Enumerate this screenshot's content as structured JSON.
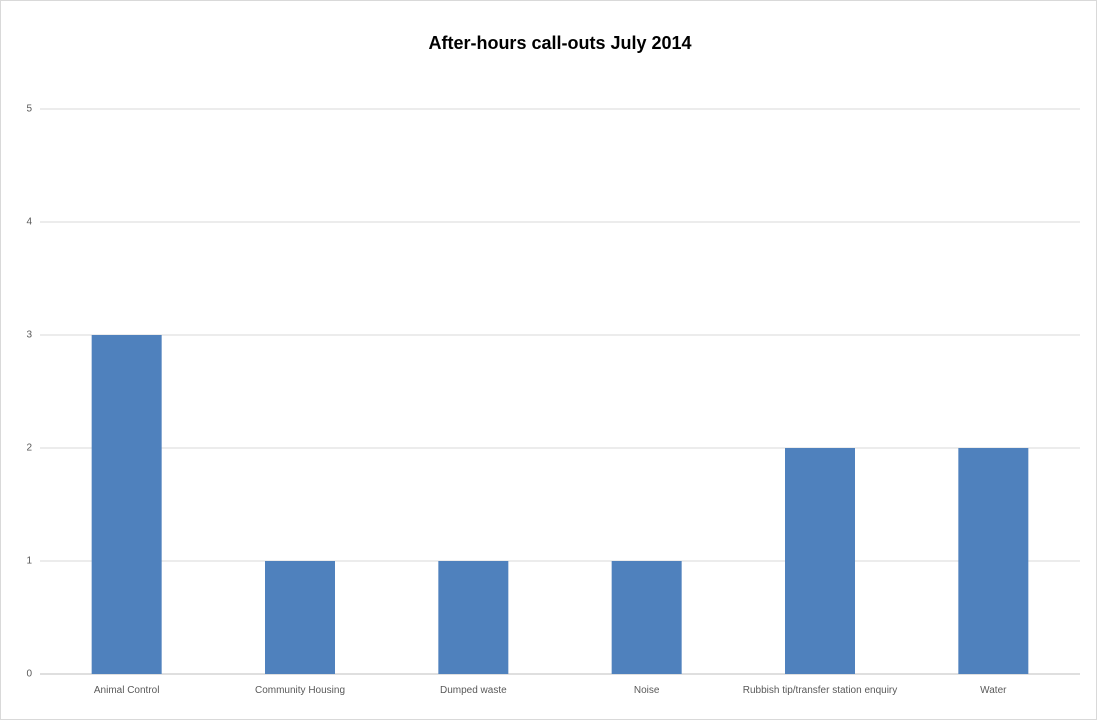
{
  "chart_data": {
    "type": "bar",
    "title": "After-hours call-outs July 2014",
    "categories": [
      "Animal Control",
      "Community Housing",
      "Dumped waste",
      "Noise",
      "Rubbish tip/transfer station enquiry",
      "Water"
    ],
    "values": [
      3,
      1,
      1,
      1,
      2,
      2
    ],
    "color": "#4f81bd",
    "ylim": [
      0,
      5
    ],
    "yticks": [
      0,
      1,
      2,
      3,
      4,
      5
    ],
    "grid": true
  }
}
